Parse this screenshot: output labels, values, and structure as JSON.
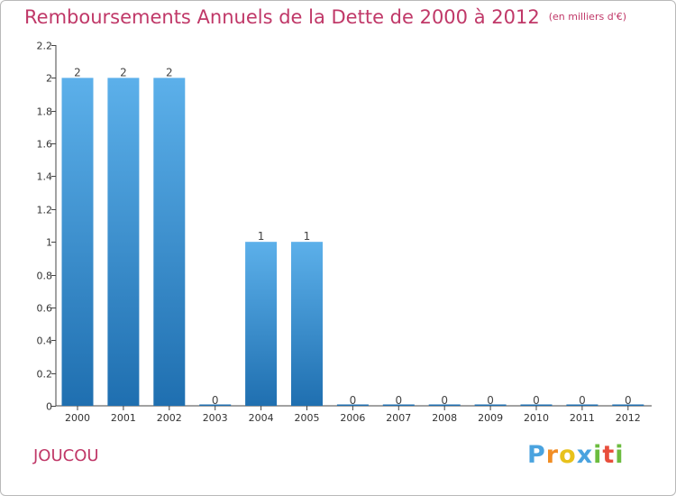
{
  "header": {
    "title": "Remboursements Annuels de la Dette de 2000 à 2012",
    "unit": "(en milliers d'€)"
  },
  "footer": {
    "commune": "JOUCOU",
    "brand_letters": [
      "P",
      "r",
      "o",
      "x",
      "i",
      "t",
      "i"
    ],
    "brand_colors": [
      "#4aa3df",
      "#f18d24",
      "#e8c21c",
      "#4aa3df",
      "#6cbc3f",
      "#e84e3c",
      "#6cbc3f"
    ]
  },
  "colors": {
    "title": "#c03868",
    "bar_top": "#5cb0ea",
    "bar_bottom": "#1f6fb0",
    "axis": "#444444"
  },
  "chart_data": {
    "type": "bar",
    "title": "Remboursements Annuels de la Dette de 2000 à 2012",
    "unit": "en milliers d'€",
    "categories": [
      "2000",
      "2001",
      "2002",
      "2003",
      "2004",
      "2005",
      "2006",
      "2007",
      "2008",
      "2009",
      "2010",
      "2011",
      "2012"
    ],
    "values": [
      2,
      2,
      2,
      0,
      1,
      1,
      0,
      0,
      0,
      0,
      0,
      0,
      0
    ],
    "data_labels": [
      "2",
      "2",
      "2",
      "0",
      "1",
      "1",
      "0",
      "0",
      "0",
      "0",
      "0",
      "0",
      "0"
    ],
    "ylim": [
      0,
      2.2
    ],
    "yticks": [
      0,
      0.2,
      0.4,
      0.6,
      0.8,
      1,
      1.2,
      1.4,
      1.6,
      1.8,
      2,
      2.2
    ],
    "ytick_labels": [
      "0",
      "0.2",
      "0.4",
      "0.6",
      "0.8",
      "1",
      "1.2",
      "1.4",
      "1.6",
      "1.8",
      "2",
      "2.2"
    ],
    "xlabel": "",
    "ylabel": "",
    "grid": false
  }
}
